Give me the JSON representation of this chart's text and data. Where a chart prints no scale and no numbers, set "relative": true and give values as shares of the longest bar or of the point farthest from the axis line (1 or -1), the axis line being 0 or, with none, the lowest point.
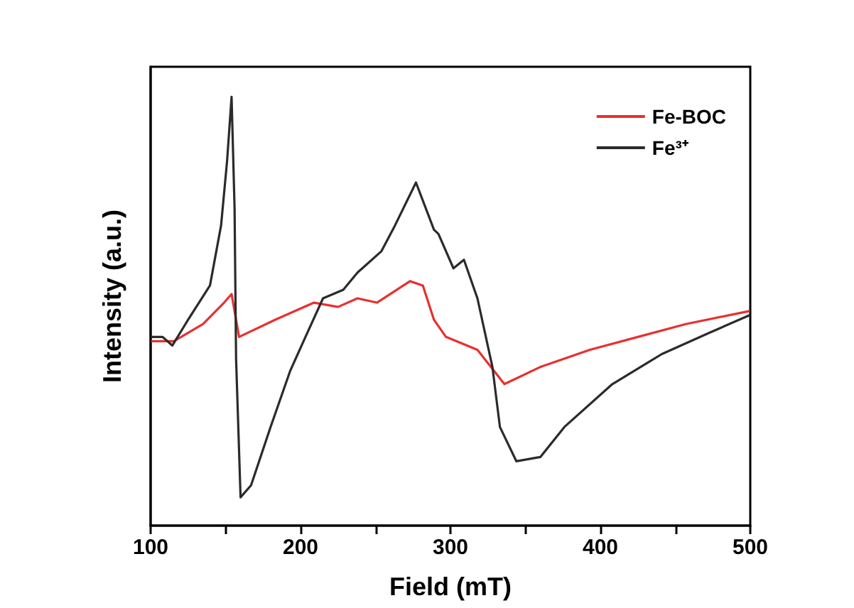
{
  "chart_data": {
    "type": "line",
    "relative": true,
    "xlabel": "Field (mT)",
    "ylabel": "Intensity (a.u.)",
    "xlim": [
      100,
      500
    ],
    "xticks": [
      100,
      {
        "value": 150,
        "label": null
      },
      200,
      {
        "value": 250,
        "label": null
      },
      300,
      {
        "value": 350,
        "label": null
      },
      400,
      {
        "value": 450,
        "label": null
      },
      500
    ],
    "legend": "top right",
    "grid": false,
    "marker": "none",
    "line_style": "solid",
    "series": [
      {
        "name": "Fe-BOC",
        "color": "#e8302f",
        "x": [
          101,
          115.5,
          135,
          149,
          154,
          159,
          183,
          209,
          225,
          238,
          251,
          273,
          281.6,
          289,
          297,
          318,
          336,
          360,
          393,
          425,
          457,
          499
        ],
        "values": [
          0.43,
          0.43,
          0.47,
          0.52,
          0.54,
          0.44,
          0.48,
          0.52,
          0.51,
          0.53,
          0.52,
          0.57,
          0.56,
          0.48,
          0.44,
          0.41,
          0.33,
          0.37,
          0.41,
          0.44,
          0.47,
          0.5
        ]
      },
      {
        "name": "Fe³⁺",
        "color": "#2b2b2b",
        "x": [
          101,
          108,
          114.5,
          125,
          139.6,
          147,
          151,
          154,
          156,
          157,
          160,
          167,
          180,
          193,
          202,
          215,
          228.5,
          238,
          254,
          263,
          277,
          289,
          292,
          302,
          309,
          318,
          328,
          333,
          344,
          360,
          376,
          408,
          441,
          473,
          499
        ],
        "values": [
          0.44,
          0.44,
          0.42,
          0.48,
          0.56,
          0.7,
          0.85,
          1.0,
          0.74,
          0.39,
          0.066,
          0.094,
          0.23,
          0.36,
          0.43,
          0.53,
          0.55,
          0.59,
          0.64,
          0.7,
          0.8,
          0.69,
          0.68,
          0.6,
          0.62,
          0.53,
          0.37,
          0.23,
          0.15,
          0.16,
          0.23,
          0.33,
          0.4,
          0.45,
          0.49
        ]
      }
    ]
  }
}
